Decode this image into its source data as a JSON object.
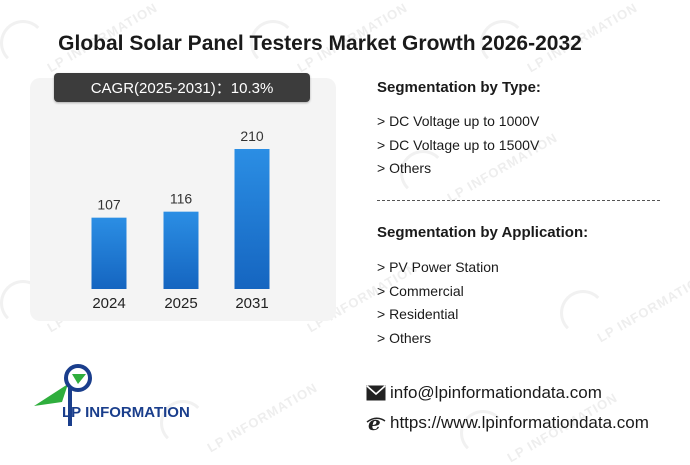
{
  "title": "Global Solar Panel Testers Market Growth 2026-2032",
  "cagr_label": "CAGR(2025-2031)：10.3%",
  "watermark_text": "LP INFORMATION",
  "chart_data": {
    "type": "bar",
    "categories": [
      "2024",
      "2025",
      "2031"
    ],
    "values": [
      107,
      116,
      210
    ],
    "data_labels": [
      "107",
      "116",
      "210"
    ],
    "title": "",
    "xlabel": "",
    "ylabel": "",
    "ylim": [
      0,
      240
    ],
    "grid": false,
    "bar_color_top": "#2b8ee4",
    "bar_color_bottom": "#1565c0"
  },
  "segmentation_type": {
    "title": "Segmentation by Type:",
    "items": [
      "> DC Voltage up to 1000V",
      "> DC Voltage up to 1500V",
      "> Others"
    ]
  },
  "segmentation_application": {
    "title": "Segmentation by Application:",
    "items": [
      "> PV Power Station",
      "> Commercial",
      "> Residential",
      "> Others"
    ]
  },
  "logo": {
    "text": "LP INFORMATION",
    "color_primary": "#1a3e8c",
    "color_accent": "#2fae3d"
  },
  "contact": {
    "email": "info@lpinformationdata.com",
    "website": "https://www.lpinformationdata.com",
    "email_icon": "envelope-icon",
    "web_icon": "browser-e-icon"
  }
}
